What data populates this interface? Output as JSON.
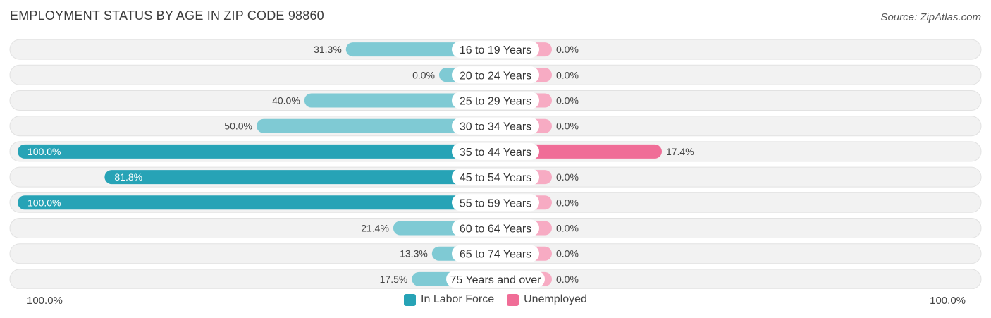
{
  "title": "EMPLOYMENT STATUS BY AGE IN ZIP CODE 98860",
  "source": "Source: ZipAtlas.com",
  "axis": {
    "left_label": "100.0%",
    "right_label": "100.0%"
  },
  "legend": [
    {
      "label": "In Labor Force",
      "color": "#27a3b6"
    },
    {
      "label": "Unemployed",
      "color": "#f06d97"
    }
  ],
  "colors": {
    "labor_dark": "#27a3b6",
    "labor_light": "#7fcad4",
    "unemp_dark": "#f06d97",
    "unemp_light": "#f7abc3",
    "row_bg": "#f2f2f2"
  },
  "chart_data": {
    "type": "bar",
    "title": "EMPLOYMENT STATUS BY AGE IN ZIP CODE 98860",
    "orientation": "horizontal-diverging",
    "xlim": [
      -100,
      100
    ],
    "categories": [
      "16 to 19 Years",
      "20 to 24 Years",
      "25 to 29 Years",
      "30 to 34 Years",
      "35 to 44 Years",
      "45 to 54 Years",
      "55 to 59 Years",
      "60 to 64 Years",
      "65 to 74 Years",
      "75 Years and over"
    ],
    "series": [
      {
        "name": "In Labor Force",
        "values": [
          31.3,
          0.0,
          40.0,
          50.0,
          100.0,
          81.8,
          100.0,
          21.4,
          13.3,
          17.5
        ],
        "labels": [
          "31.3%",
          "0.0%",
          "40.0%",
          "50.0%",
          "100.0%",
          "81.8%",
          "100.0%",
          "21.4%",
          "13.3%",
          "17.5%"
        ]
      },
      {
        "name": "Unemployed",
        "values": [
          0.0,
          0.0,
          0.0,
          0.0,
          17.4,
          0.0,
          0.0,
          0.0,
          0.0,
          0.0
        ],
        "labels": [
          "0.0%",
          "0.0%",
          "0.0%",
          "0.0%",
          "17.4%",
          "0.0%",
          "0.0%",
          "0.0%",
          "0.0%",
          "0.0%"
        ]
      }
    ],
    "legend_position": "bottom-center"
  }
}
